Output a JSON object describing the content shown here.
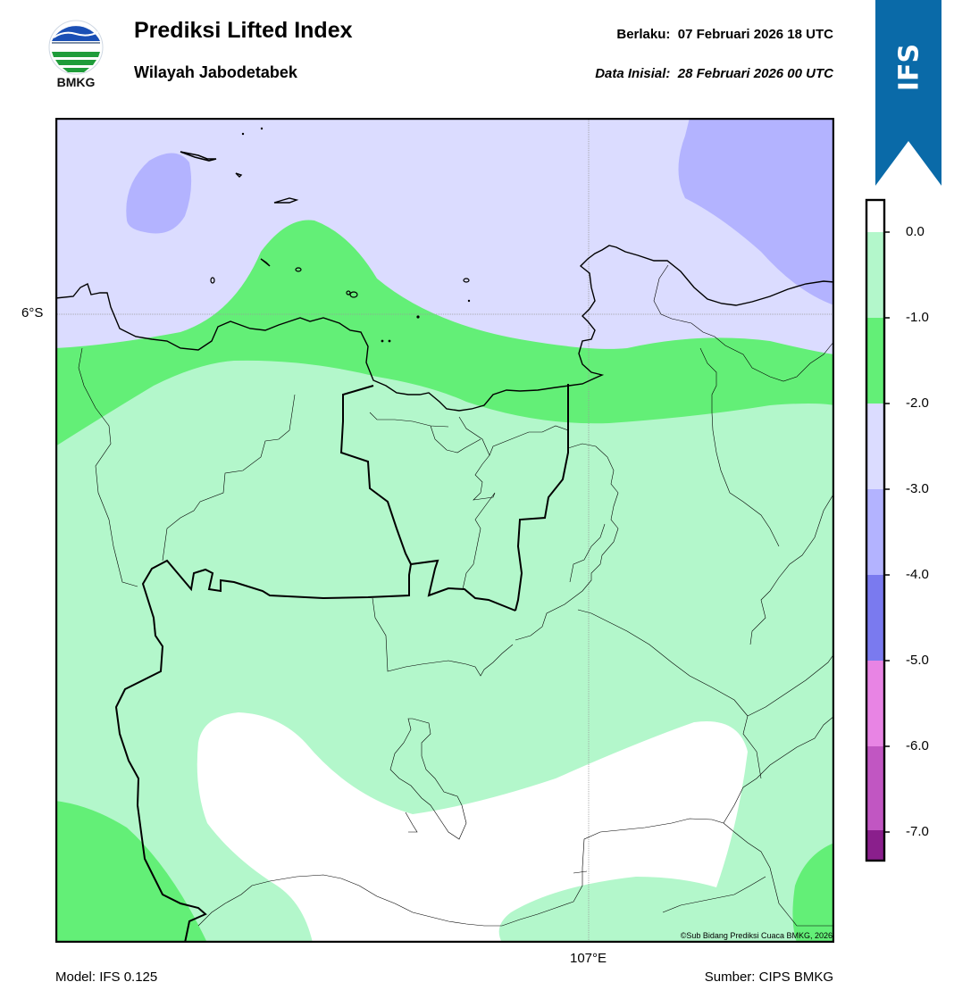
{
  "header": {
    "title": "Prediksi Lifted Index",
    "subtitle": "Wilayah Jabodetabek",
    "valid_label": "Berlaku:",
    "valid_value": "07 Februari 2026 18 UTC",
    "init_label": "Data Inisial:",
    "init_value": "28 Februari 2026 00 UTC"
  },
  "logo": {
    "text": "BMKG",
    "icon": "bmkg-logo"
  },
  "badge": {
    "text": "IFS",
    "color": "#0a6aa8"
  },
  "map": {
    "lat_label": "6°S",
    "lon_label": "107°E",
    "copyright": "©Sub Bidang Prediksi Cuaca BMKG, 2026"
  },
  "colorbar": {
    "labels": [
      "0.0",
      "-1.0",
      "-2.0",
      "-3.0",
      "-4.0",
      "-5.0",
      "-6.0",
      "-7.0"
    ],
    "colors": [
      "#b3f7cb",
      "#63ef77",
      "#dbdcff",
      "#b3b3ff",
      "#7a7aef",
      "#e884e4",
      "#c156c2",
      "#8a1f8c"
    ],
    "top_color": "#ffffff"
  },
  "footer": {
    "model": "Model: IFS 0.125",
    "source": "Sumber: CIPS BMKG"
  }
}
